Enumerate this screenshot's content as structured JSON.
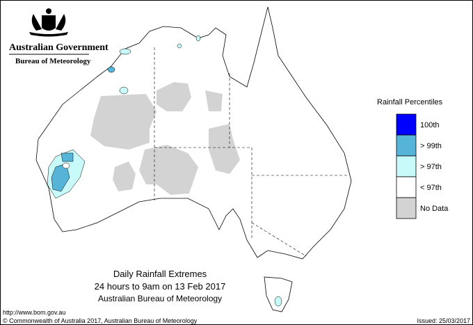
{
  "header": {
    "government": "Australian Government",
    "bureau": "Bureau of Meteorology"
  },
  "legend": {
    "title": "Rainfall Percentiles",
    "items": [
      {
        "label": "100th",
        "color": "#0000ff"
      },
      {
        "label": "> 99th",
        "color": "#56b4d9"
      },
      {
        "label": "> 97th",
        "color": "#c8fafa"
      },
      {
        "label": "< 97th",
        "color": "#ffffff"
      },
      {
        "label": "No Data",
        "color": "#d3d3d3"
      }
    ]
  },
  "caption": {
    "title": "Daily Rainfall Extremes",
    "subtitle": "24 hours to 9am on 13 Feb 2017",
    "source": "Australian Bureau of Meteorology"
  },
  "footer": {
    "url": "http://www.bom.gov.au",
    "copyright": "© Commonwealth of Australia 2017, Australian Bureau of Meteorology",
    "issued": "Issued: 25/03/2017"
  }
}
